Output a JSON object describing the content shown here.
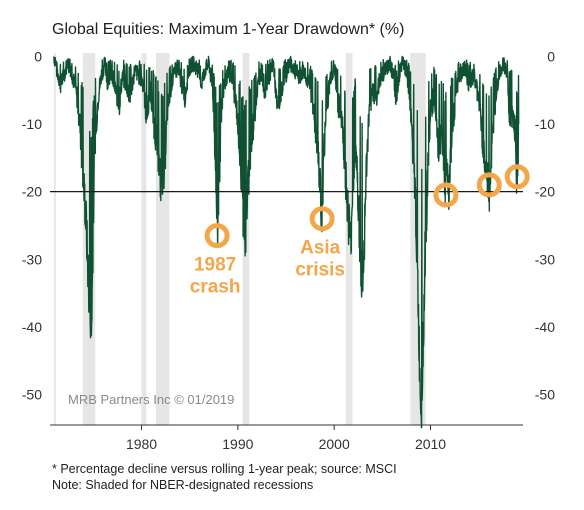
{
  "chart_data": {
    "type": "area",
    "title": "Global Equities: Maximum 1-Year Drawdown* (%)",
    "xlabel": "",
    "ylabel": "",
    "xlim": [
      1970.5,
      2019.6
    ],
    "ylim": [
      -54.5,
      0.5
    ],
    "x_ticks": [
      "1980",
      "1990",
      "2000",
      "2010"
    ],
    "y_ticks_left": [
      "0",
      "-10",
      "-20",
      "-30",
      "-40",
      "-50"
    ],
    "y_ticks_right": [
      "0",
      "-10",
      "-20",
      "-30",
      "-40",
      "-50"
    ],
    "reference_line": -20,
    "colors": {
      "series": "#0F5132",
      "recession": "#e6e6e6",
      "highlight": "#F3A64A",
      "reference": "#1a1a1a"
    },
    "recessions": [
      [
        1970.9,
        1971.0
      ],
      [
        1973.9,
        1975.2
      ],
      [
        1980.0,
        1980.5
      ],
      [
        1981.5,
        1982.9
      ],
      [
        1990.5,
        1991.2
      ],
      [
        2001.2,
        2001.9
      ],
      [
        2007.9,
        2009.5
      ]
    ],
    "series": [
      {
        "x": [
          1970.9,
          1971.2,
          1971.6,
          1971.9,
          1972.3,
          1972.7,
          1973.0,
          1973.3,
          1973.6,
          1973.9,
          1974.1,
          1974.3,
          1974.5,
          1974.7,
          1974.8,
          1974.9,
          1975.0,
          1975.2,
          1975.5,
          1975.8,
          1976.2,
          1976.5,
          1976.8,
          1977.3,
          1977.7,
          1978.0,
          1978.4,
          1978.8,
          1979.3,
          1979.8,
          1980.2,
          1980.5,
          1980.9,
          1981.3,
          1981.7,
          1982.0,
          1982.4,
          1982.7,
          1983.1,
          1983.6,
          1984.0,
          1984.5,
          1984.9,
          1985.3,
          1985.8,
          1986.2,
          1986.6,
          1987.0,
          1987.4,
          1987.7,
          1987.85,
          1988.0,
          1988.2,
          1988.5,
          1989.0,
          1989.5,
          1989.9,
          1990.2,
          1990.5,
          1990.8,
          1991.0,
          1991.3,
          1991.7,
          1992.0,
          1992.4,
          1992.8,
          1993.2,
          1993.7,
          1994.1,
          1994.5,
          1994.9,
          1995.4,
          1995.9,
          1996.4,
          1996.9,
          1997.3,
          1997.7,
          1998.0,
          1998.3,
          1998.6,
          1998.75,
          1998.9,
          1999.2,
          1999.6,
          2000.0,
          2000.4,
          2000.8,
          2001.1,
          2001.4,
          2001.7,
          2001.9,
          2002.2,
          2002.5,
          2002.7,
          2002.9,
          2003.1,
          2003.3,
          2003.6,
          2004.0,
          2004.4,
          2004.8,
          2005.3,
          2005.8,
          2006.2,
          2006.4,
          2006.7,
          2007.1,
          2007.5,
          2007.8,
          2008.1,
          2008.4,
          2008.6,
          2008.8,
          2008.95,
          2009.1,
          2009.2,
          2009.4,
          2009.7,
          2010.0,
          2010.4,
          2010.8,
          2011.2,
          2011.5,
          2011.7,
          2011.9,
          2012.2,
          2012.6,
          2013.0,
          2013.5,
          2014.0,
          2014.5,
          2015.0,
          2015.4,
          2015.7,
          2016.0,
          2016.1,
          2016.4,
          2016.8,
          2017.2,
          2017.6,
          2018.0,
          2018.2,
          2018.5,
          2018.8,
          2018.9,
          2019.0,
          2019.1,
          2019.15
        ],
        "values": [
          0,
          -2,
          -4,
          -3,
          -1,
          -2,
          -4,
          -6,
          -10,
          -17,
          -21,
          -26,
          -34,
          -38,
          -41,
          -33,
          -23,
          -12,
          -6,
          -3,
          -1,
          -4,
          -2,
          -5,
          -7,
          -3,
          -4,
          -6,
          -2,
          -3,
          -4,
          -9,
          -5,
          -10,
          -14,
          -19,
          -16,
          -8,
          -4,
          -2,
          -3,
          -6,
          -2,
          -1,
          -2,
          -4,
          -2,
          -1,
          -5,
          -16,
          -27,
          -22,
          -12,
          -5,
          -2,
          -4,
          -8,
          -14,
          -22,
          -27,
          -20,
          -15,
          -9,
          -5,
          -2,
          -5,
          -3,
          -1,
          -8,
          -5,
          -3,
          -1,
          -2,
          -3,
          -2,
          -4,
          -6,
          -10,
          -14,
          -21,
          -24,
          -15,
          -8,
          -3,
          -2,
          -7,
          -9,
          -16,
          -22,
          -28,
          -20,
          -13,
          -21,
          -30,
          -34,
          -29,
          -18,
          -9,
          -5,
          -6,
          -3,
          -2,
          -1,
          -3,
          -7,
          -3,
          -1,
          -2,
          -5,
          -12,
          -20,
          -29,
          -42,
          -50,
          -52,
          -45,
          -31,
          -18,
          -8,
          -6,
          -14,
          -11,
          -19,
          -16,
          -20,
          -12,
          -6,
          -3,
          -2,
          -4,
          -3,
          -6,
          -12,
          -17,
          -19,
          -20,
          -13,
          -5,
          -2,
          -1,
          -3,
          -9,
          -8,
          -11,
          -18,
          -17,
          -15,
          -10
        ]
      }
    ],
    "highlights": [
      {
        "x": 1987.85,
        "y": -26.5,
        "label_lines": [
          "1987",
          "crash"
        ]
      },
      {
        "x": 1998.75,
        "y": -24,
        "label_lines": [
          "Asia",
          "crisis"
        ]
      },
      {
        "x": 2011.6,
        "y": -20.5,
        "label_lines": []
      },
      {
        "x": 2016.1,
        "y": -19,
        "label_lines": []
      },
      {
        "x": 2019.0,
        "y": -17.8,
        "label_lines": []
      }
    ],
    "credit": "MRB Partners Inc © 01/2019",
    "footnotes": [
      "* Percentage decline versus rolling 1-year peak; source: MSCI",
      "Note: Shaded for NBER-designated recessions"
    ]
  }
}
